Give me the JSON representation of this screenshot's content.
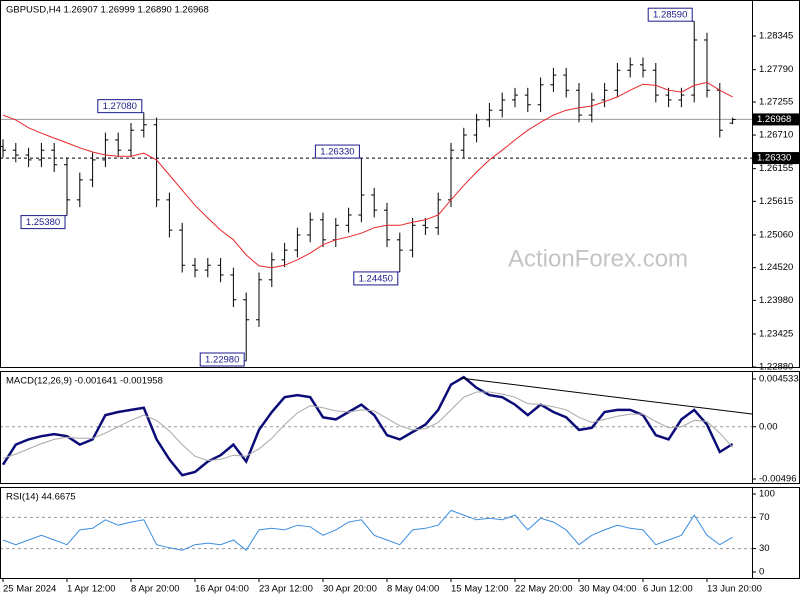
{
  "chart_data": [
    {
      "type": "ohlc",
      "title": "GBPUSD,H4  1.26907 1.26999 1.26890 1.26968",
      "watermark": "ActionForex.com",
      "color": "#000000",
      "categories": [
        "25 Mar 2024",
        null,
        null,
        null,
        null,
        "1 Apr 12:00",
        null,
        null,
        null,
        null,
        "8 Apr 20:00",
        null,
        null,
        null,
        null,
        "16 Apr 04:00",
        null,
        null,
        null,
        null,
        "23 Apr 12:00",
        null,
        null,
        null,
        null,
        "30 Apr 20:00",
        null,
        null,
        null,
        null,
        "8 May 04:00",
        null,
        null,
        null,
        null,
        "15 May 12:00",
        null,
        null,
        null,
        null,
        "22 May 20:00",
        null,
        null,
        null,
        null,
        "30 May 04:00",
        null,
        null,
        null,
        null,
        "6 Jun 12:00",
        null,
        null,
        null,
        null,
        "13 Jun 20:00",
        null,
        null
      ],
      "ohlc": [
        [
          1.2652,
          1.2664,
          1.2634,
          1.2646
        ],
        [
          1.2646,
          1.2658,
          1.2626,
          1.2638
        ],
        [
          1.2638,
          1.265,
          1.2618,
          1.263
        ],
        [
          1.263,
          1.2658,
          1.2618,
          1.2646
        ],
        [
          1.2646,
          1.2658,
          1.261,
          1.2622
        ],
        [
          1.2622,
          1.2634,
          1.2538,
          1.2564
        ],
        [
          1.2564,
          1.2609,
          1.2552,
          1.2597
        ],
        [
          1.2597,
          1.2642,
          1.2585,
          1.263
        ],
        [
          1.263,
          1.2675,
          1.2618,
          1.2663
        ],
        [
          1.2663,
          1.2675,
          1.2634,
          1.2646
        ],
        [
          1.2646,
          1.2691,
          1.2634,
          1.2679
        ],
        [
          1.2679,
          1.2708,
          1.2667,
          1.2688
        ],
        [
          1.2688,
          1.27,
          1.2552,
          1.2564
        ],
        [
          1.2564,
          1.2576,
          1.2502,
          1.2514
        ],
        [
          1.2514,
          1.2526,
          1.2444,
          1.2456
        ],
        [
          1.2456,
          1.2468,
          1.2436,
          1.2448
        ],
        [
          1.2448,
          1.2468,
          1.2436,
          1.2456
        ],
        [
          1.2456,
          1.2468,
          1.2428,
          1.244
        ],
        [
          1.244,
          1.2452,
          1.2387,
          1.2399
        ],
        [
          1.2399,
          1.2411,
          1.2298,
          1.2366
        ],
        [
          1.2366,
          1.2444,
          1.2354,
          1.2432
        ],
        [
          1.2432,
          1.2477,
          1.242,
          1.2465
        ],
        [
          1.2465,
          1.2493,
          1.2453,
          1.2481
        ],
        [
          1.2481,
          1.2518,
          1.2469,
          1.2506
        ],
        [
          1.2506,
          1.2543,
          1.2494,
          1.2531
        ],
        [
          1.2531,
          1.2543,
          1.2486,
          1.2498
        ],
        [
          1.2498,
          1.2534,
          1.2486,
          1.2522
        ],
        [
          1.2522,
          1.2551,
          1.251,
          1.2539
        ],
        [
          1.2539,
          1.2633,
          1.2527,
          1.2572
        ],
        [
          1.2572,
          1.2584,
          1.2535,
          1.2547
        ],
        [
          1.2547,
          1.2559,
          1.2486,
          1.2498
        ],
        [
          1.2498,
          1.251,
          1.2445,
          1.2481
        ],
        [
          1.2481,
          1.2534,
          1.2469,
          1.2522
        ],
        [
          1.2522,
          1.2534,
          1.2506,
          1.2518
        ],
        [
          1.2518,
          1.2576,
          1.2506,
          1.2564
        ],
        [
          1.2564,
          1.2658,
          1.2552,
          1.2646
        ],
        [
          1.2646,
          1.2683,
          1.2634,
          1.2671
        ],
        [
          1.2671,
          1.2706,
          1.2659,
          1.2696
        ],
        [
          1.2696,
          1.2724,
          1.2684,
          1.2712
        ],
        [
          1.2712,
          1.2741,
          1.27,
          1.2729
        ],
        [
          1.2729,
          1.2749,
          1.2717,
          1.2737
        ],
        [
          1.2737,
          1.2749,
          1.2709,
          1.2721
        ],
        [
          1.2721,
          1.2766,
          1.2709,
          1.2754
        ],
        [
          1.2754,
          1.2782,
          1.2742,
          1.277
        ],
        [
          1.277,
          1.2782,
          1.2733,
          1.2745
        ],
        [
          1.2745,
          1.2757,
          1.2692,
          1.2704
        ],
        [
          1.2704,
          1.2741,
          1.2692,
          1.2729
        ],
        [
          1.2729,
          1.2757,
          1.2717,
          1.2745
        ],
        [
          1.2745,
          1.279,
          1.2733,
          1.2778
        ],
        [
          1.2778,
          1.2799,
          1.2766,
          1.2787
        ],
        [
          1.2787,
          1.2799,
          1.2766,
          1.2778
        ],
        [
          1.2778,
          1.279,
          1.2725,
          1.2737
        ],
        [
          1.2737,
          1.2749,
          1.2717,
          1.2729
        ],
        [
          1.2729,
          1.2749,
          1.2717,
          1.2737
        ],
        [
          1.2737,
          1.2859,
          1.2725,
          1.2828
        ],
        [
          1.2828,
          1.284,
          1.2733,
          1.2745
        ],
        [
          1.2745,
          1.2757,
          1.2667,
          1.2679
        ],
        [
          1.26907,
          1.26999,
          1.2689,
          1.26968
        ]
      ],
      "series": [
        {
          "color": "#e8262a",
          "values": [
            1.2704,
            1.2696,
            1.2683,
            1.2674,
            1.2666,
            1.2658,
            1.265,
            1.2643,
            1.2638,
            1.2636,
            1.2636,
            1.2641,
            1.263,
            1.2605,
            1.258,
            1.2555,
            1.2534,
            1.2514,
            1.2498,
            1.2473,
            1.2455,
            1.2452,
            1.2456,
            1.2465,
            1.2476,
            1.249,
            1.2498,
            1.2503,
            1.2509,
            1.2518,
            1.2522,
            1.2522,
            1.2527,
            1.2531,
            1.2539,
            1.2564,
            1.2588,
            1.261,
            1.263,
            1.2646,
            1.2663,
            1.2679,
            1.2692,
            1.2704,
            1.2712,
            1.2716,
            1.2719,
            1.2726,
            1.2734,
            1.2745,
            1.2755,
            1.2753,
            1.2745,
            1.2742,
            1.2753,
            1.2758,
            1.2745,
            1.2734
          ]
        }
      ],
      "ylim": [
        1.2288,
        1.2894
      ],
      "yticks": [
        1.28345,
        {
          "value": 1.2779,
          "label": "1.27790"
        },
        1.27255,
        {
          "value": 1.2671,
          "label": "1.26710"
        },
        1.26155,
        1.25615,
        {
          "value": 1.2506,
          "label": "1.25060"
        },
        {
          "value": 1.2452,
          "label": "1.24520"
        },
        {
          "value": 1.2398,
          "label": "1.23980"
        },
        1.23425,
        {
          "value": 1.2288,
          "label": "1.22880"
        }
      ],
      "hlines": [
        {
          "value": 1.26968,
          "style": "solid"
        },
        {
          "value": 1.2633,
          "label": "1.26330",
          "style": "dashed"
        }
      ],
      "annotations": [
        {
          "value": 1.2538,
          "label": "1.25380"
        },
        {
          "value": 1.2708,
          "label": "1.27080"
        },
        {
          "value": 1.2298,
          "label": "1.22980"
        },
        {
          "value": 1.2633,
          "label": "1.26330"
        },
        {
          "value": 1.2445,
          "label": "1.24450"
        },
        {
          "value": 1.2859,
          "label": "1.28590"
        }
      ]
    },
    {
      "type": "line",
      "title": "MACD(12,26,9) -0.001641 -0.001958",
      "series": [
        {
          "color": "#0c0c78",
          "values": [
            -0.0036,
            -0.0017,
            -0.0012,
            -0.0009,
            -0.0007,
            -0.0009,
            -0.0017,
            -0.0012,
            0.0011,
            0.0014,
            0.0016,
            0.0018,
            -0.0012,
            -0.0031,
            -0.0046,
            -0.0043,
            -0.0033,
            -0.0027,
            -0.0017,
            -0.0033,
            -0.0003,
            0.0014,
            0.0028,
            0.003,
            0.0028,
            0.0009,
            0.0007,
            0.0014,
            0.0021,
            0.0011,
            -0.0008,
            -0.0012,
            -0.0005,
            0.0002,
            0.0016,
            0.004,
            0.0047,
            0.0037,
            0.003,
            0.0028,
            0.0021,
            0.0011,
            0.0021,
            0.0014,
            0.0009,
            -0.0003,
            -0.0001,
            0.0014,
            0.0016,
            0.0016,
            0.0011,
            -0.0008,
            -0.0012,
            0.0007,
            0.0016,
            0.0002,
            -0.0024,
            -0.001641
          ]
        },
        {
          "color": "#a8a8a8",
          "values": [
            -0.003,
            -0.0026,
            -0.0021,
            -0.0016,
            -0.0012,
            -0.001,
            -0.0011,
            -0.0011,
            -0.0006,
            0,
            0.0006,
            0.0011,
            0.0006,
            -0.0004,
            -0.0017,
            -0.0028,
            -0.0032,
            -0.0031,
            -0.0027,
            -0.0028,
            -0.0021,
            -0.0011,
            0.0002,
            0.0013,
            0.002,
            0.0018,
            0.0015,
            0.0014,
            0.0016,
            0.0015,
            0.0008,
            0.0001,
            -0.0003,
            -0.0002,
            0.0004,
            0.0016,
            0.0028,
            0.0033,
            0.0033,
            0.0031,
            0.0028,
            0.0022,
            0.0021,
            0.0019,
            0.0016,
            0.0009,
            0.0004,
            0.0007,
            0.001,
            0.0012,
            0.0012,
            0.0005,
            -0.0001,
            0,
            0.0006,
            0.0005,
            -0.0006,
            -0.001958
          ]
        }
      ],
      "ylim": [
        -0.00534,
        0.00529
      ],
      "yticks": [
        0.004533,
        {
          "value": 0,
          "label": "0.00"
        },
        -0.00496
      ],
      "hlines": [
        0
      ]
    },
    {
      "type": "line",
      "title": "RSI(14) 44.6675",
      "series": [
        {
          "color": "#3c8ee0",
          "values": [
            41,
            35,
            41,
            47,
            41,
            35,
            54,
            56,
            67,
            60,
            64,
            67,
            35,
            31,
            28,
            35,
            37,
            35,
            41,
            28,
            54,
            56,
            54,
            60,
            58,
            47,
            54,
            64,
            67,
            47,
            41,
            35,
            54,
            56,
            60,
            79,
            73,
            67,
            69,
            67,
            73,
            54,
            69,
            64,
            54,
            35,
            47,
            54,
            60,
            56,
            54,
            35,
            41,
            47,
            73,
            47,
            35,
            44.6675
          ]
        }
      ],
      "ylim": [
        -7.7,
        109
      ],
      "yticks": [
        100,
        70,
        30,
        0
      ],
      "hlines": [
        70,
        30
      ]
    }
  ]
}
